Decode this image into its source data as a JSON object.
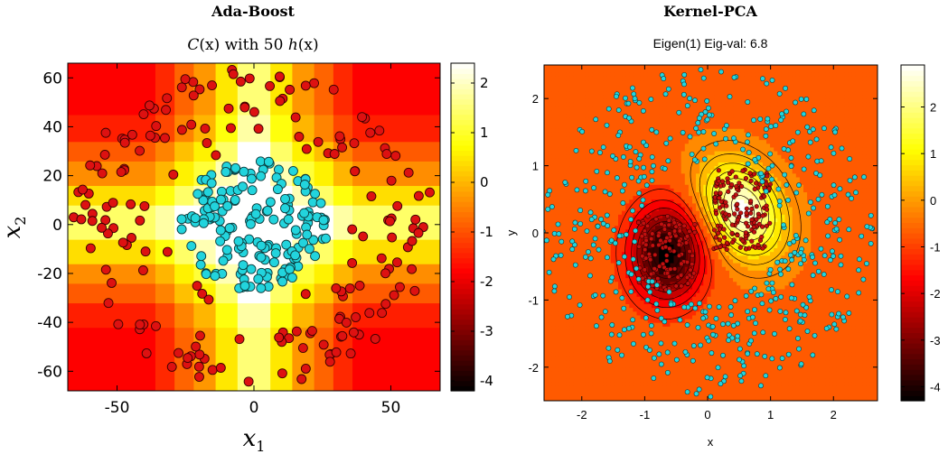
{
  "colors": {
    "class_red": "#dd1111",
    "class_cyan": "#22d4dd",
    "marker_edge": "#3a0000",
    "axes": "#000000"
  },
  "colormap": "hot",
  "panels": [
    {
      "heading": "Ada-Boost",
      "subtitle_parts": [
        "C",
        "(x)",
        " with 50 ",
        "h",
        "(x)"
      ],
      "xlabel": "x",
      "xlabel_sub": "1",
      "ylabel": "x",
      "ylabel_sub": "2"
    },
    {
      "heading": "Kernel-PCA",
      "subtitle": "Eigen(1)  Eig-val: 6.8",
      "xlabel": "x",
      "ylabel": "y"
    }
  ],
  "chart_data": [
    {
      "type": "heatmap",
      "title": "C(x) with 50 h(x)",
      "xlabel": "x1",
      "ylabel": "x2",
      "xlim": [
        -68,
        68
      ],
      "ylim": [
        -68,
        66
      ],
      "xticks": [
        -50,
        0,
        50
      ],
      "yticks": [
        -60,
        -40,
        -20,
        0,
        20,
        40,
        60
      ],
      "colorbar": {
        "range": [
          -4.2,
          2.4
        ],
        "ticks": [
          -4,
          -3,
          -2,
          -1,
          0,
          1,
          2
        ]
      },
      "x_thresholds": [
        {
          "t": 6,
          "w": 0.5
        },
        {
          "t": -6,
          "w": 0.5
        },
        {
          "t": 14,
          "w": 0.4
        },
        {
          "t": -14,
          "w": 0.4
        },
        {
          "t": 22,
          "w": 0.25
        },
        {
          "t": -22,
          "w": 0.25
        },
        {
          "t": 29,
          "w": 0.3
        },
        {
          "t": -29,
          "w": 0.3
        },
        {
          "t": 36,
          "w": 0.2
        },
        {
          "t": -36,
          "w": 0.2
        }
      ],
      "y_thresholds": [
        {
          "t": 8,
          "w": 0.5
        },
        {
          "t": -6,
          "w": 0.5
        },
        {
          "t": 16,
          "w": 0.4
        },
        {
          "t": -16,
          "w": 0.4
        },
        {
          "t": 26,
          "w": 0.25
        },
        {
          "t": -24,
          "w": 0.25
        },
        {
          "t": 34,
          "w": 0.3
        },
        {
          "t": -32,
          "w": 0.3
        },
        {
          "t": 45,
          "w": 0.15
        },
        {
          "t": -42,
          "w": 0.15
        }
      ],
      "series": [
        {
          "name": "",
          "class": "outer",
          "count": 185,
          "radius": [
            28,
            66
          ]
        },
        {
          "name": "",
          "class": "inner",
          "count": 175,
          "radius": [
            0,
            27
          ]
        }
      ]
    },
    {
      "type": "scatter",
      "subtype": "contour",
      "title": "Eigen(1)  Eig-val: 6.8",
      "xlabel": "x",
      "ylabel": "y",
      "xlim": [
        -2.6,
        2.7
      ],
      "ylim": [
        -2.5,
        2.5
      ],
      "xticks": [
        -2,
        -1,
        0,
        1,
        2
      ],
      "yticks": [
        -2,
        -1,
        0,
        1,
        2
      ],
      "colorbar": {
        "range": [
          -4.3,
          2.9
        ],
        "ticks": [
          -4,
          -3,
          -2,
          -1,
          0,
          1,
          2
        ]
      },
      "background_value": -0.6,
      "negative_blob": {
        "x": -0.65,
        "y": -0.3,
        "sx": 0.45,
        "sy": 0.55,
        "amp": -3.7
      },
      "positive_blob": {
        "x": 0.55,
        "y": 0.35,
        "sx": 0.45,
        "sy": 0.6,
        "amp": 3.4,
        "rotation_deg": -35
      },
      "series": [
        {
          "name": "",
          "class": "inner",
          "count": 300,
          "radius": [
            0,
            1.0
          ]
        },
        {
          "name": "",
          "class": "outer",
          "count": 520,
          "radius": [
            1.1,
            2.6
          ]
        }
      ]
    }
  ]
}
